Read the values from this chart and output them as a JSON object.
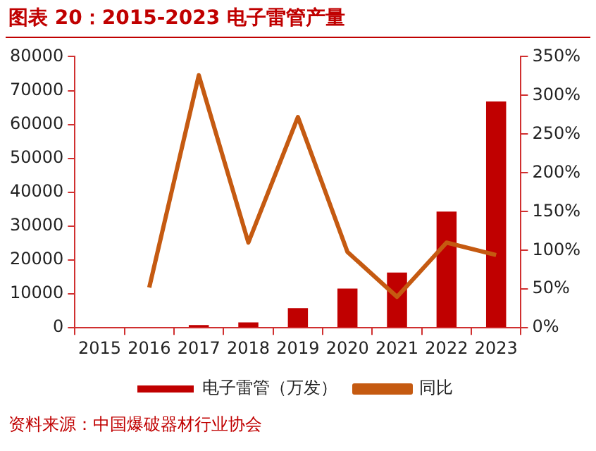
{
  "chart_data": {
    "type": "bar",
    "title": "图表 20：2015-2023 电子雷管产量",
    "categories": [
      "2015",
      "2016",
      "2017",
      "2018",
      "2019",
      "2020",
      "2021",
      "2022",
      "2023"
    ],
    "series": [
      {
        "name": "电子雷管（万发）",
        "color": "#c00000",
        "values": [
          null,
          null,
          800,
          1600,
          5800,
          11600,
          16300,
          34300,
          66800
        ]
      },
      {
        "name": "同比",
        "type": "line",
        "axis": "y2",
        "color": "#c55a11",
        "values": [
          null,
          52,
          326,
          110,
          272,
          98,
          40,
          110,
          94
        ]
      }
    ],
    "ylim": [
      0,
      80000
    ],
    "yticks": [
      0,
      10000,
      20000,
      30000,
      40000,
      50000,
      60000,
      70000,
      80000
    ],
    "y2lim": [
      0,
      350
    ],
    "y2ticks": [
      {
        "value": 0,
        "label": "0%"
      },
      {
        "value": 50,
        "label": "50%"
      },
      {
        "value": 100,
        "label": "100%"
      },
      {
        "value": 150,
        "label": "150%"
      },
      {
        "value": 200,
        "label": "200%"
      },
      {
        "value": 250,
        "label": "250%"
      },
      {
        "value": 300,
        "label": "300%"
      },
      {
        "value": 350,
        "label": "350%"
      }
    ],
    "grid": false,
    "legend": "bottom",
    "marker": "none",
    "annotations": [
      "资料来源：中国爆破器材行业协会"
    ]
  }
}
